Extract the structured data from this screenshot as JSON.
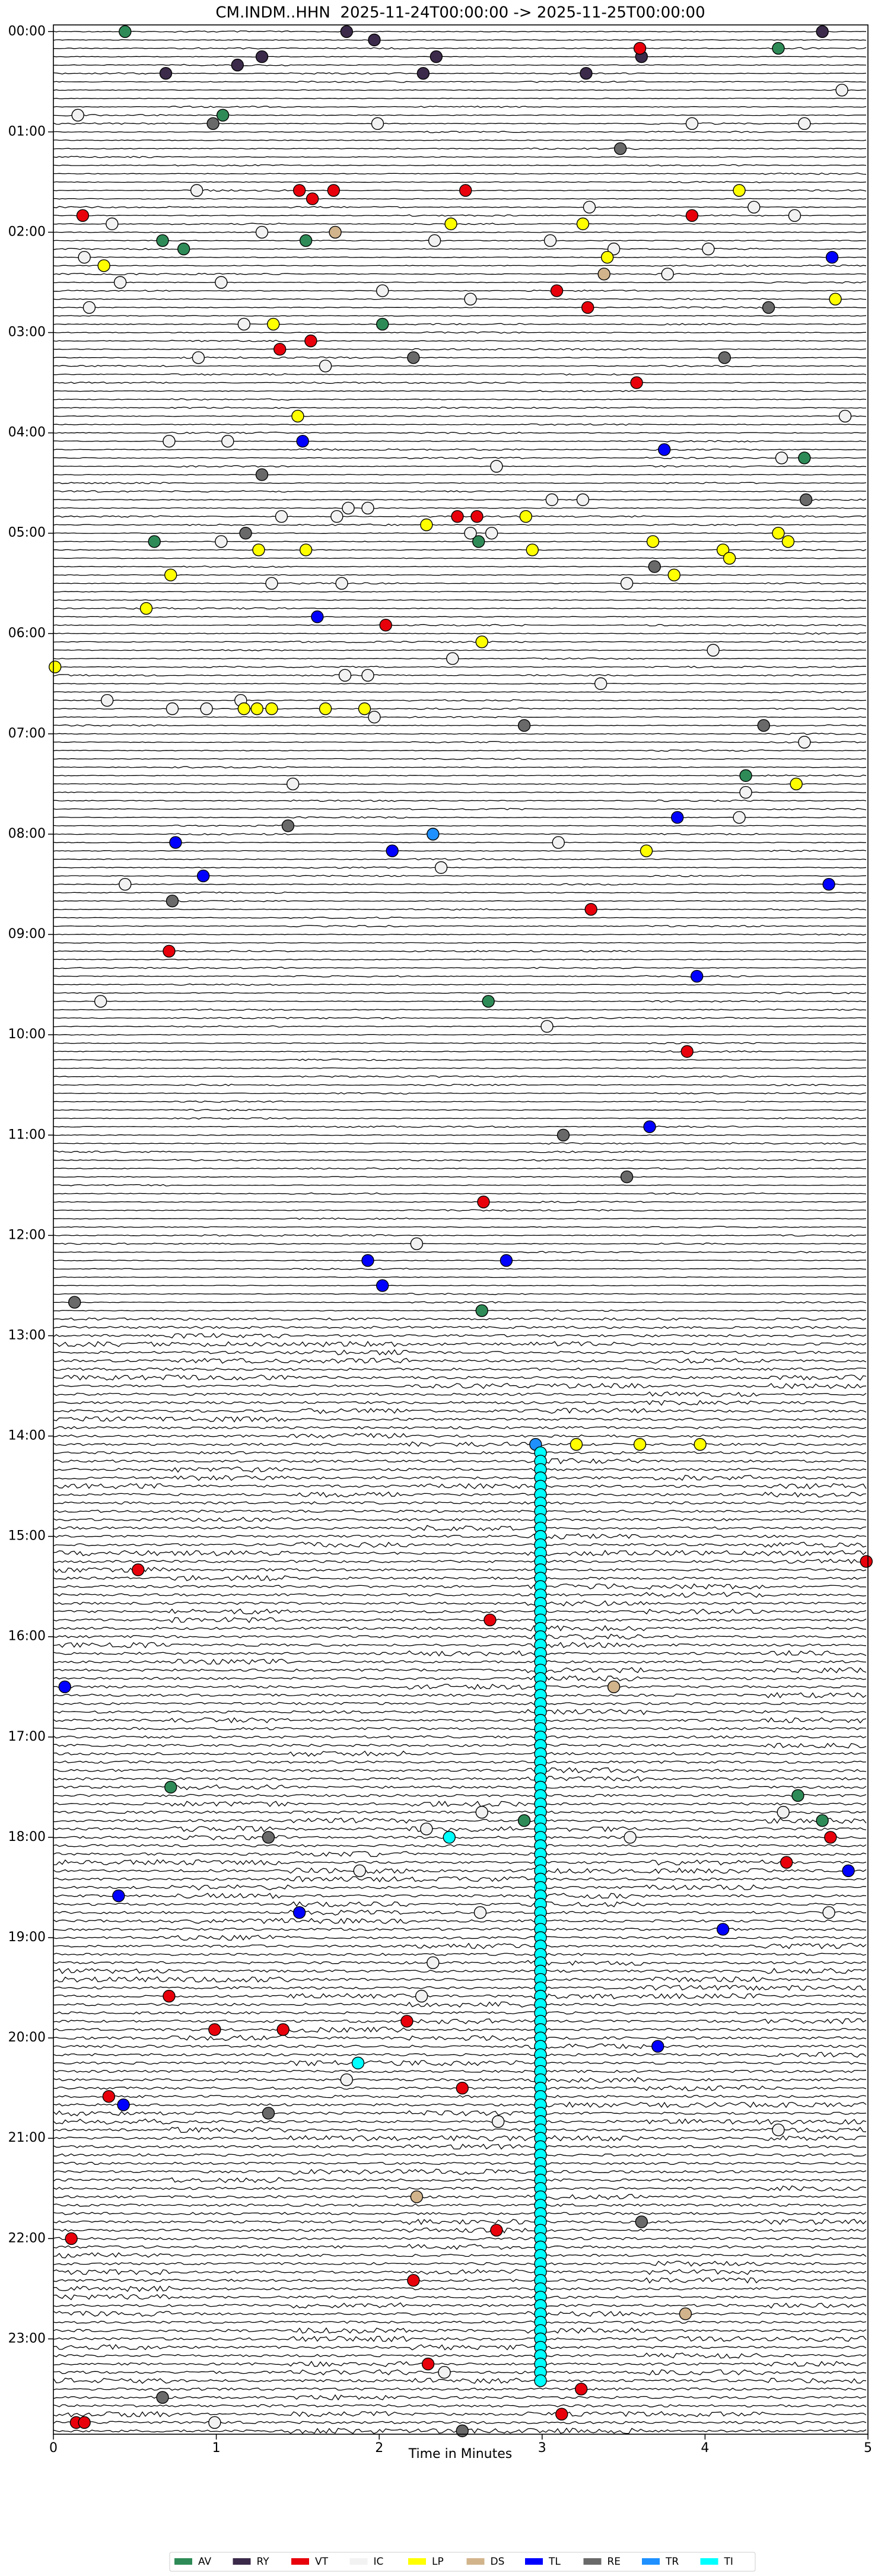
{
  "chart_data": {
    "type": "helicorder",
    "title": "CM.INDM..HHN  2025-11-24T00:00:00 -> 2025-11-25T00:00:00",
    "xlabel": "Time in Minutes",
    "xlim": [
      0,
      5
    ],
    "xticks": [
      0,
      1,
      2,
      3,
      4,
      5
    ],
    "ylim": [
      -4,
      1437
    ],
    "y_inverted": true,
    "row_minutes": 5,
    "yticks": [
      {
        "value": 0,
        "label": "00:00"
      },
      {
        "value": 60,
        "label": "01:00"
      },
      {
        "value": 120,
        "label": "02:00"
      },
      {
        "value": 180,
        "label": "03:00"
      },
      {
        "value": 240,
        "label": "04:00"
      },
      {
        "value": 300,
        "label": "05:00"
      },
      {
        "value": 360,
        "label": "06:00"
      },
      {
        "value": 420,
        "label": "07:00"
      },
      {
        "value": 480,
        "label": "08:00"
      },
      {
        "value": 540,
        "label": "09:00"
      },
      {
        "value": 600,
        "label": "10:00"
      },
      {
        "value": 660,
        "label": "11:00"
      },
      {
        "value": 720,
        "label": "12:00"
      },
      {
        "value": 780,
        "label": "13:00"
      },
      {
        "value": 840,
        "label": "14:00"
      },
      {
        "value": 900,
        "label": "15:00"
      },
      {
        "value": 960,
        "label": "16:00"
      },
      {
        "value": 1020,
        "label": "17:00"
      },
      {
        "value": 1080,
        "label": "18:00"
      },
      {
        "value": 1140,
        "label": "19:00"
      },
      {
        "value": 1200,
        "label": "20:00"
      },
      {
        "value": 1260,
        "label": "21:00"
      },
      {
        "value": 1320,
        "label": "22:00"
      },
      {
        "value": 1380,
        "label": "23:00"
      }
    ],
    "legend": "below",
    "series": [
      {
        "name": "AV",
        "color": "#2e8b57",
        "x": [
          0.44,
          4.45,
          1.04,
          0.67,
          1.55,
          0.8,
          2.02,
          4.61,
          0.62,
          2.61,
          4.25,
          2.67,
          2.63,
          0.72,
          4.57,
          4.72,
          2.89
        ],
        "y": [
          0,
          10,
          50,
          125,
          125,
          130,
          175,
          255,
          305,
          305,
          445,
          580,
          765,
          1050,
          1055,
          1070,
          1070
        ]
      },
      {
        "name": "RY",
        "color": "#3b2a4a",
        "x": [
          1.8,
          4.72,
          1.97,
          3.61,
          2.35,
          1.28,
          1.13,
          0.69,
          2.27,
          3.27
        ],
        "y": [
          0,
          0,
          5,
          15,
          15,
          15,
          20,
          25,
          25,
          25
        ]
      },
      {
        "name": "VT",
        "color": "#e8000b",
        "x": [
          3.6,
          1.51,
          1.72,
          2.53,
          1.59,
          0.18,
          3.92,
          3.09,
          3.28,
          1.58,
          1.39,
          3.58,
          2.48,
          2.6,
          2.04,
          3.3,
          0.71,
          3.89,
          2.64,
          0.52,
          4.99,
          2.68,
          4.77,
          4.5,
          0.71,
          0.99,
          1.41,
          2.17,
          2.51,
          0.34,
          0.11,
          2.72,
          2.21,
          2.3,
          3.24,
          3.12,
          0.14,
          0.19
        ],
        "y": [
          10,
          95,
          95,
          95,
          100,
          110,
          110,
          155,
          165,
          185,
          190,
          210,
          290,
          290,
          355,
          525,
          550,
          610,
          700,
          920,
          915,
          950,
          1080,
          1095,
          1175,
          1195,
          1195,
          1190,
          1230,
          1235,
          1320,
          1315,
          1345,
          1395,
          1410,
          1425,
          1430,
          1430
        ]
      },
      {
        "name": "IC",
        "color": "#f2f2f2",
        "x": [
          4.84,
          0.15,
          1.99,
          3.92,
          4.61,
          0.88,
          3.29,
          4.3,
          4.55,
          0.36,
          1.28,
          2.34,
          3.05,
          3.44,
          4.02,
          0.19,
          3.77,
          0.41,
          1.03,
          2.02,
          2.56,
          0.22,
          1.17,
          0.89,
          1.67,
          4.86,
          0.71,
          1.07,
          4.47,
          2.72,
          3.06,
          3.25,
          1.81,
          1.93,
          1.74,
          1.4,
          2.56,
          2.69,
          1.03,
          1.77,
          3.52,
          1.34,
          4.05,
          1.79,
          1.93,
          2.45,
          3.36,
          0.33,
          1.15,
          0.73,
          0.94,
          1.97,
          4.61,
          4.25,
          1.47,
          4.21,
          3.1,
          2.38,
          0.44,
          0.29,
          3.03,
          2.23,
          2.63,
          4.48,
          2.29,
          3.54,
          1.88,
          2.62,
          4.76,
          2.33,
          2.26,
          1.8,
          2.73,
          4.45,
          2.4,
          0.99
        ],
        "y": [
          35,
          50,
          55,
          55,
          55,
          95,
          105,
          105,
          110,
          115,
          120,
          125,
          125,
          130,
          130,
          135,
          145,
          150,
          150,
          155,
          160,
          165,
          175,
          195,
          200,
          230,
          245,
          245,
          255,
          260,
          280,
          280,
          285,
          285,
          290,
          290,
          300,
          300,
          305,
          330,
          330,
          330,
          370,
          385,
          385,
          375,
          390,
          400,
          400,
          405,
          405,
          410,
          425,
          455,
          450,
          470,
          485,
          500,
          510,
          580,
          595,
          725,
          1065,
          1065,
          1075,
          1080,
          1100,
          1125,
          1125,
          1155,
          1175,
          1225,
          1250,
          1255,
          1400,
          1430
        ]
      },
      {
        "name": "LP",
        "color": "#ffff00",
        "x": [
          4.21,
          2.44,
          3.25,
          3.4,
          0.31,
          4.8,
          1.35,
          1.5,
          2.9,
          2.29,
          4.45,
          3.68,
          4.51,
          1.26,
          1.55,
          2.94,
          4.11,
          4.15,
          3.81,
          0.72,
          0.57,
          2.63,
          0.01,
          1.17,
          1.25,
          1.34,
          1.67,
          1.91,
          4.56,
          3.64,
          3.21,
          3.6,
          3.97
        ],
        "y": [
          95,
          115,
          115,
          135,
          140,
          160,
          175,
          230,
          290,
          295,
          300,
          305,
          305,
          310,
          310,
          310,
          310,
          315,
          325,
          325,
          345,
          365,
          380,
          405,
          405,
          405,
          405,
          405,
          450,
          490,
          845,
          845,
          845
        ]
      },
      {
        "name": "DS",
        "color": "#d2b48c",
        "x": [
          1.73,
          3.38,
          3.44,
          2.23,
          3.88
        ],
        "y": [
          120,
          145,
          990,
          1295,
          1365
        ]
      },
      {
        "name": "TL",
        "color": "#0000ff",
        "x": [
          4.78,
          1.53,
          3.75,
          1.62,
          3.83,
          0.75,
          2.08,
          0.92,
          4.76,
          3.95,
          3.66,
          1.93,
          2.78,
          2.02,
          0.07,
          4.88,
          0.4,
          1.51,
          4.11,
          3.71,
          0.43
        ],
        "y": [
          135,
          245,
          250,
          350,
          470,
          485,
          490,
          505,
          510,
          565,
          655,
          735,
          735,
          750,
          990,
          1100,
          1115,
          1125,
          1135,
          1205,
          1240
        ]
      },
      {
        "name": "RE",
        "color": "#696969",
        "x": [
          3.48,
          0.98,
          4.39,
          2.21,
          4.12,
          1.28,
          4.62,
          1.18,
          3.69,
          2.89,
          4.36,
          1.44,
          0.73,
          3.13,
          3.52,
          0.13,
          1.32,
          1.32,
          3.61,
          0.67,
          2.51
        ],
        "y": [
          70,
          55,
          165,
          195,
          195,
          265,
          280,
          300,
          320,
          415,
          415,
          475,
          520,
          660,
          685,
          760,
          1080,
          1245,
          1310,
          1415,
          1435
        ]
      },
      {
        "name": "TR",
        "color": "#1e90ff",
        "x": [
          2.33,
          2.96
        ],
        "y": [
          480,
          845
        ]
      },
      {
        "name": "TI",
        "color": "#00ffff",
        "x": [
          2.43,
          1.87,
          2.99,
          2.99,
          2.99,
          2.99,
          2.99,
          2.99,
          2.99,
          2.99,
          2.99,
          2.99,
          2.99,
          2.99,
          2.99,
          2.99,
          2.99,
          2.99,
          2.99,
          2.99,
          2.99,
          2.99,
          2.99,
          2.99,
          2.99,
          2.99,
          2.99,
          2.99,
          2.99,
          2.99,
          2.99,
          2.99,
          2.99,
          2.99,
          2.99,
          2.99,
          2.99,
          2.99,
          2.99,
          2.99,
          2.99,
          2.99,
          2.99,
          2.99,
          2.99,
          2.99,
          2.99,
          2.99,
          2.99,
          2.99,
          2.99,
          2.99,
          2.99,
          2.99,
          2.99,
          2.99,
          2.99,
          2.99,
          2.99,
          2.99,
          2.99,
          2.99,
          2.99,
          2.99,
          2.99,
          2.99,
          2.99,
          2.99,
          2.99,
          2.99,
          2.99,
          2.99,
          2.99,
          2.99,
          2.99,
          2.99,
          2.99,
          2.99,
          2.99,
          2.99,
          2.99,
          2.99,
          2.99,
          2.99,
          2.99,
          2.99,
          2.99,
          2.99,
          2.99,
          2.99,
          2.99,
          2.99,
          2.99,
          2.99,
          2.99,
          2.99,
          2.99,
          2.99,
          2.99,
          2.99,
          2.99,
          2.99,
          2.99,
          2.99,
          2.99,
          2.99,
          2.99,
          2.99,
          2.99,
          2.99,
          2.99,
          2.99,
          2.99,
          2.99
        ],
        "y": [
          1080,
          1215,
          850,
          855,
          860,
          865,
          870,
          875,
          880,
          885,
          890,
          895,
          900,
          905,
          910,
          915,
          920,
          925,
          930,
          935,
          940,
          945,
          950,
          955,
          960,
          965,
          970,
          975,
          980,
          985,
          990,
          995,
          1000,
          1005,
          1010,
          1015,
          1020,
          1025,
          1030,
          1035,
          1040,
          1045,
          1050,
          1055,
          1060,
          1065,
          1070,
          1075,
          1080,
          1085,
          1090,
          1095,
          1100,
          1105,
          1110,
          1115,
          1120,
          1125,
          1130,
          1135,
          1140,
          1145,
          1150,
          1155,
          1160,
          1165,
          1170,
          1175,
          1180,
          1185,
          1190,
          1195,
          1200,
          1205,
          1210,
          1215,
          1220,
          1225,
          1230,
          1235,
          1240,
          1245,
          1250,
          1255,
          1260,
          1265,
          1270,
          1275,
          1280,
          1285,
          1290,
          1295,
          1300,
          1305,
          1310,
          1315,
          1320,
          1325,
          1330,
          1335,
          1340,
          1345,
          1350,
          1355,
          1360,
          1365,
          1370,
          1375,
          1380,
          1385,
          1390,
          1395,
          1400,
          1405
        ]
      }
    ]
  }
}
